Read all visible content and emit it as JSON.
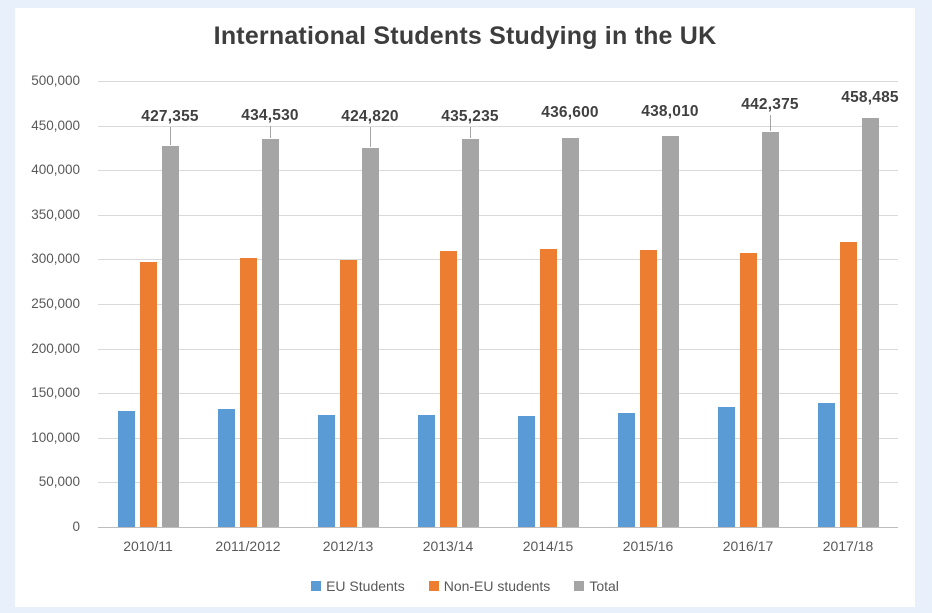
{
  "window": {
    "background_color": "#E8F1FB",
    "panel_background_color": "#FFFFFF"
  },
  "chart_data": {
    "type": "bar",
    "title": "International Students Studying in the UK",
    "categories": [
      "2010/11",
      "2011/2012",
      "2012/13",
      "2013/14",
      "2014/15",
      "2015/16",
      "2016/17",
      "2017/18"
    ],
    "series": [
      {
        "name": "EU Students",
        "color": "#5B9BD5",
        "values": [
          130120,
          132550,
          125310,
          125295,
          124575,
          127440,
          134835,
          139145
        ]
      },
      {
        "name": "Non-EU students",
        "color": "#ED7D31",
        "values": [
          297235,
          301980,
          299510,
          309940,
          312025,
          310570,
          307540,
          319340
        ]
      },
      {
        "name": "Total",
        "color": "#A5A5A5",
        "values": [
          427355,
          434530,
          424820,
          435235,
          436600,
          438010,
          442375,
          458485
        ],
        "data_labels": [
          "427,355",
          "434,530",
          "424,820",
          "435,235",
          "436,600",
          "438,010",
          "442,375",
          "458,485"
        ]
      }
    ],
    "xlabel": "",
    "ylabel": "",
    "ylim": [
      0,
      500000
    ],
    "y_tick_interval": 50000,
    "y_ticks": [
      "500,000",
      "450,000",
      "400,000",
      "350,000",
      "300,000",
      "250,000",
      "200,000",
      "150,000",
      "100,000",
      "50,000",
      "0"
    ],
    "grid": true,
    "legend_position": "bottom"
  },
  "colors": {
    "gridline": "#D9D9D9",
    "axis_line": "#BDBDBD",
    "title_text": "#3D3D3D",
    "data_label_text": "#404040",
    "tick_text": "#595959",
    "leader_line": "#A5A5A5"
  }
}
